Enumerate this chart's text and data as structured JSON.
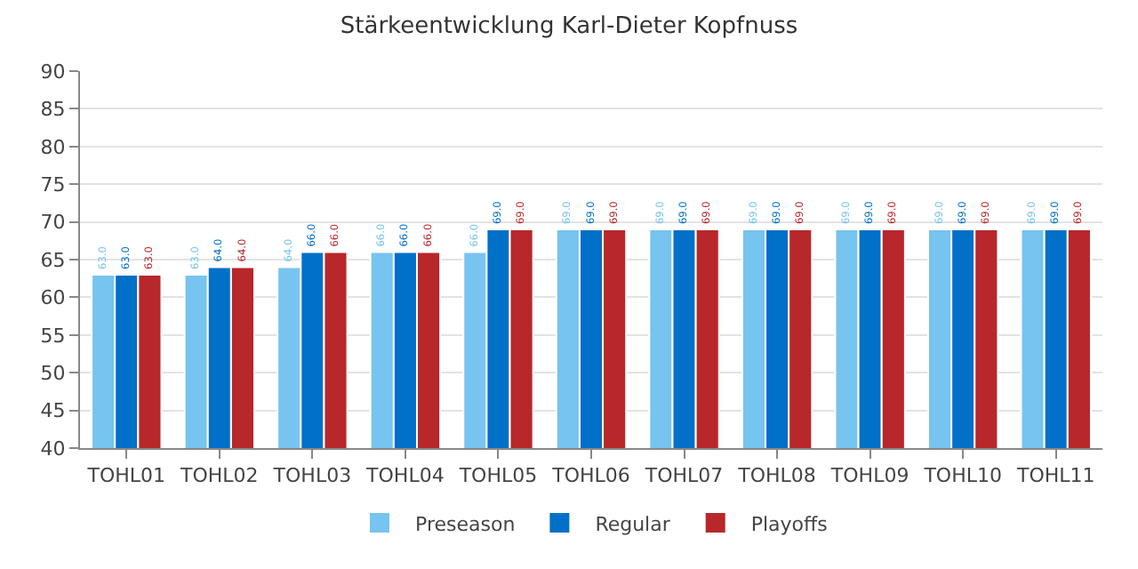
{
  "chart_data": {
    "type": "bar",
    "title": "Stärkeentwicklung Karl-Dieter Kopfnuss",
    "categories": [
      "TOHL01",
      "TOHL02",
      "TOHL03",
      "TOHL04",
      "TOHL05",
      "TOHL06",
      "TOHL07",
      "TOHL08",
      "TOHL09",
      "TOHL10",
      "TOHL11"
    ],
    "series": [
      {
        "name": "Preseason",
        "color": "#76c4ef",
        "values": [
          63,
          63,
          64,
          66,
          66,
          69,
          69,
          69,
          69,
          69,
          69
        ],
        "value_labels": [
          "63.0",
          "63.0",
          "64.0",
          "66.0",
          "66.0",
          "69.0",
          "69.0",
          "69.0",
          "69.0",
          "69.0",
          "69.0"
        ]
      },
      {
        "name": "Regular",
        "color": "#0070c8",
        "values": [
          63,
          64,
          66,
          66,
          69,
          69,
          69,
          69,
          69,
          69,
          69
        ],
        "value_labels": [
          "63.0",
          "64.0",
          "66.0",
          "66.0",
          "69.0",
          "69.0",
          "69.0",
          "69.0",
          "69.0",
          "69.0",
          "69.0"
        ]
      },
      {
        "name": "Playoffs",
        "color": "#b8272a",
        "values": [
          63,
          64,
          66,
          66,
          69,
          69,
          69,
          69,
          69,
          69,
          69
        ],
        "value_labels": [
          "63.0",
          "64.0",
          "66.0",
          "66.0",
          "69.0",
          "69.0",
          "69.0",
          "69.0",
          "69.0",
          "69.0",
          "69.0"
        ]
      }
    ],
    "ylim": [
      40,
      90
    ],
    "yticks": [
      40,
      45,
      50,
      55,
      60,
      65,
      70,
      75,
      80,
      85,
      90
    ],
    "grid": "y",
    "legend": "bottom"
  }
}
